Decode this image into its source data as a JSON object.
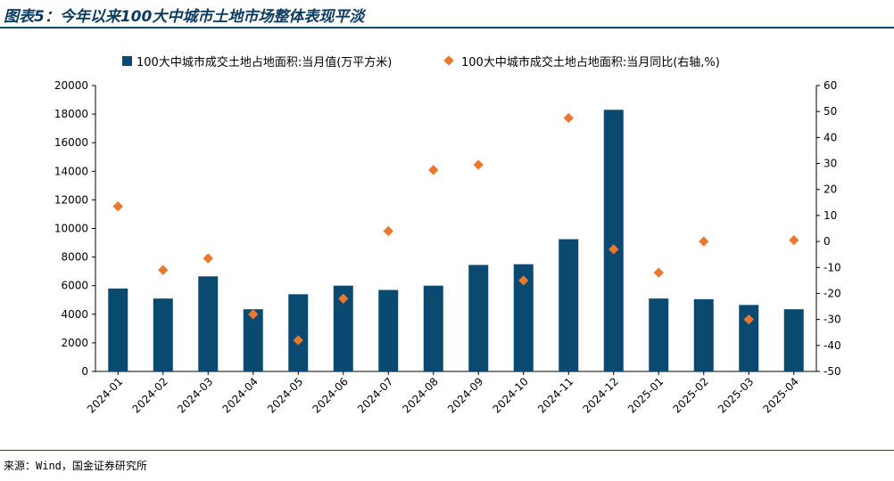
{
  "header": {
    "title": "图表5：今年以来100大中城市土地市场整体表现平淡"
  },
  "source": "来源：Wind，国金证券研究所",
  "colors": {
    "bar": "#0b4a70",
    "scatter": "#e8792f",
    "title": "#0b3a5e"
  },
  "chart_data": {
    "type": "bar",
    "categories": [
      "2024-01",
      "2024-02",
      "2024-03",
      "2024-04",
      "2024-05",
      "2024-06",
      "2024-07",
      "2024-08",
      "2024-09",
      "2024-10",
      "2024-11",
      "2024-12",
      "2025-01",
      "2025-02",
      "2025-03",
      "2025-04"
    ],
    "series": [
      {
        "name": "100大中城市成交土地占地面积:当月值(万平方米)",
        "type": "bar",
        "axis": "left",
        "values": [
          5800,
          5100,
          6650,
          4350,
          5400,
          6000,
          5700,
          6000,
          7450,
          7500,
          9250,
          18300,
          5100,
          5050,
          4650,
          4350
        ]
      },
      {
        "name": "100大中城市成交土地占地面积:当月同比(右轴,%)",
        "type": "scatter",
        "axis": "right",
        "values": [
          13.5,
          -11,
          -6.5,
          -28,
          -38,
          -22,
          4,
          27.5,
          29.5,
          -15,
          47.5,
          -3,
          -12,
          0,
          -30,
          0.5
        ]
      }
    ],
    "y_left": {
      "lim": [
        0,
        20000
      ],
      "ticks": [
        "0",
        "2000",
        "4000",
        "6000",
        "8000",
        "10000",
        "12000",
        "14000",
        "16000",
        "18000",
        "20000"
      ]
    },
    "y_right": {
      "lim": [
        -50,
        60
      ],
      "ticks": [
        "-50",
        "-40",
        "-30",
        "-20",
        "-10",
        "0",
        "10",
        "20",
        "30",
        "40",
        "50",
        "60"
      ]
    },
    "legend": "top",
    "grid": false
  }
}
